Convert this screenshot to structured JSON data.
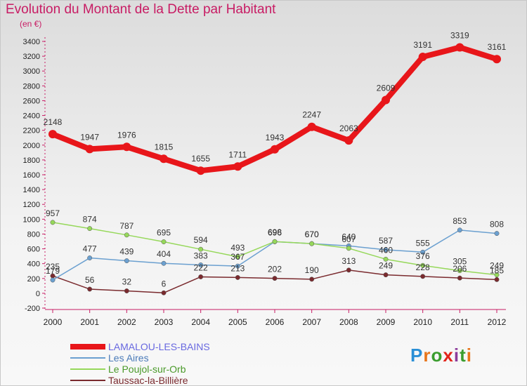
{
  "header": {
    "title": "Evolution du Montant de la Dette par Habitant",
    "unit": "(en €)"
  },
  "logo": {
    "text": "Proxiti",
    "letter_colors": [
      "#2a8fd6",
      "#e8751a",
      "#3a9d2e",
      "#e2231a",
      "#8b3a9a",
      "#3a9d2e",
      "#e8751a"
    ]
  },
  "chart_data": {
    "type": "line",
    "title": "Evolution du Montant de la Dette par Habitant",
    "ylabel": "(en €)",
    "xlabel": "",
    "ylim": [
      -200,
      3400
    ],
    "y_ticks": [
      -200,
      0,
      200,
      400,
      600,
      800,
      1000,
      1200,
      1400,
      1600,
      1800,
      2000,
      2200,
      2400,
      2600,
      2800,
      3000,
      3200,
      3400
    ],
    "grid": false,
    "legend_position": "bottom-left",
    "x": [
      "2000",
      "2001",
      "2002",
      "2003",
      "2004",
      "2005",
      "2006",
      "2007",
      "2008",
      "2009",
      "2010",
      "2011",
      "2012"
    ],
    "series": [
      {
        "name": "LAMALOU-LES-BAINS",
        "color": "#e8161a",
        "values": [
          2148,
          1947,
          1976,
          1815,
          1655,
          1711,
          1943,
          2247,
          2063,
          2609,
          3191,
          3319,
          3161
        ],
        "labels": [
          "2148",
          "1947",
          "1976",
          "1815",
          "1655",
          "1711",
          "1943",
          "2247",
          "2063",
          "2609",
          "3191",
          "3319",
          "3161"
        ]
      },
      {
        "name": "Les Aires",
        "color": "#6ba0d0",
        "values": [
          179,
          477,
          439,
          404,
          383,
          367,
          696,
          670,
          640,
          587,
          555,
          853,
          808
        ],
        "labels": [
          "179",
          "477",
          "439",
          "404",
          "383",
          "367",
          "696",
          "670",
          "640",
          "587",
          "555",
          "853",
          "808"
        ]
      },
      {
        "name": "Le Poujol-sur-Orb",
        "color": "#96d85a",
        "values": [
          957,
          874,
          787,
          695,
          594,
          493,
          698,
          670,
          607,
          460,
          376,
          305,
          249
        ],
        "labels": [
          "957",
          "874",
          "787",
          "695",
          "594",
          "493",
          "698",
          "670",
          "607",
          "460",
          "376",
          "305",
          "249"
        ]
      },
      {
        "name": "Taussac-la-Billière",
        "color": "#7a2a2e",
        "values": [
          235,
          56,
          32,
          6,
          222,
          213,
          202,
          190,
          313,
          249,
          228,
          206,
          185
        ],
        "labels": [
          "235",
          "56",
          "32",
          "6",
          "222",
          "213",
          "202",
          "190",
          "313",
          "249",
          "228",
          "206",
          "185"
        ]
      }
    ]
  }
}
